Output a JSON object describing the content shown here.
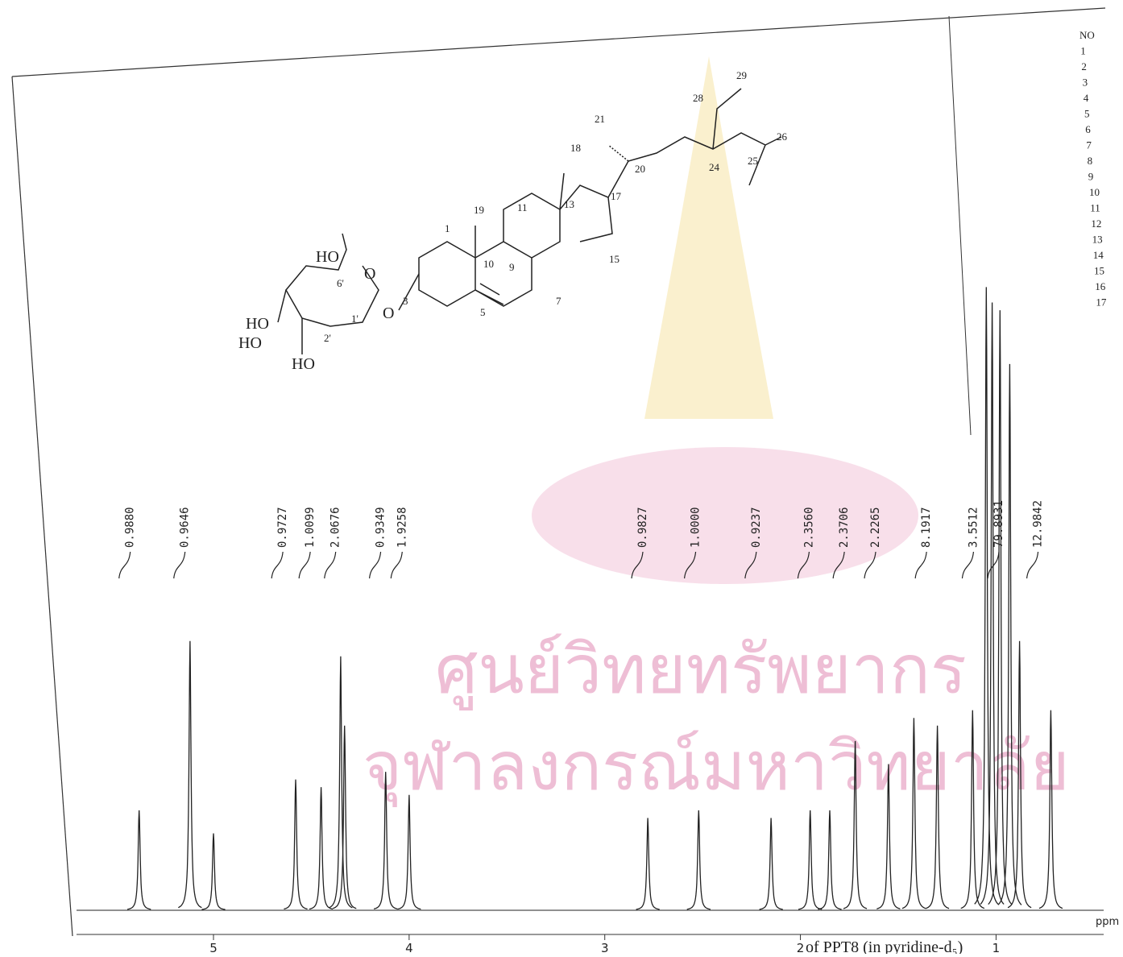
{
  "chart_data": {
    "type": "spectrum",
    "x_label": "ppm",
    "color": "#222222",
    "xlim": [
      5.7,
      0.45
    ],
    "xticks": [
      5,
      4,
      3,
      2,
      1
    ],
    "peaks": {
      "x": [
        5.38,
        5.12,
        5.0,
        4.58,
        4.45,
        4.35,
        4.33,
        4.12,
        4.0,
        2.78,
        2.52,
        2.15,
        1.95,
        1.85,
        1.72,
        1.55,
        1.42,
        1.3,
        1.12,
        1.05,
        1.02,
        0.98,
        0.93,
        0.88,
        0.72
      ],
      "values": [
        13,
        35,
        10,
        17,
        16,
        33,
        24,
        18,
        15,
        12,
        13,
        12,
        13,
        13,
        22,
        19,
        25,
        24,
        26,
        81,
        79,
        78,
        71,
        35,
        26
      ]
    },
    "integrals": {
      "x": [
        5.45,
        5.17,
        4.67,
        4.53,
        4.4,
        4.17,
        4.06,
        2.83,
        2.56,
        2.25,
        1.98,
        1.8,
        1.64,
        1.38,
        1.14,
        1.01,
        0.81
      ],
      "values": [
        0.988,
        0.9646,
        0.9727,
        1.0099,
        2.0676,
        0.9349,
        1.9258,
        0.9827,
        1.0,
        0.9237,
        2.356,
        2.3706,
        2.2265,
        8.1917,
        3.5512,
        79.8931,
        12.9842
      ],
      "value_labels": [
        "0.9880",
        "0.9646",
        "0.9727",
        "1.0099",
        "2.0676",
        "0.9349",
        "1.9258",
        "0.9827",
        "1.0000",
        "0.9237",
        "2.3560",
        "2.3706",
        "2.2265",
        "8.1917",
        "3.5512",
        "79.8931",
        "12.9842"
      ]
    }
  },
  "structure": {
    "labels": [
      "HO",
      "6'",
      "HO",
      "HO",
      "2'",
      "1'",
      "HO",
      "O",
      "O",
      "3",
      "1",
      "19",
      "10",
      "5",
      "9",
      "11",
      "7",
      "13",
      "18",
      "15",
      "17",
      "21",
      "20",
      "28",
      "29",
      "24",
      "25",
      "26"
    ]
  },
  "side_list": [
    "NO",
    "1",
    "2",
    "3",
    "4",
    "5",
    "6",
    "7",
    "8",
    "9",
    "10",
    "11",
    "12",
    "13",
    "14",
    "15",
    "16",
    "17"
  ],
  "caption": "of PPT8 (in pyridine-d₅)",
  "watermark": [
    "ศูนย์วิทยทรัพยากร",
    "จุฬาลงกรณ์มหาวิทยาลัย"
  ]
}
